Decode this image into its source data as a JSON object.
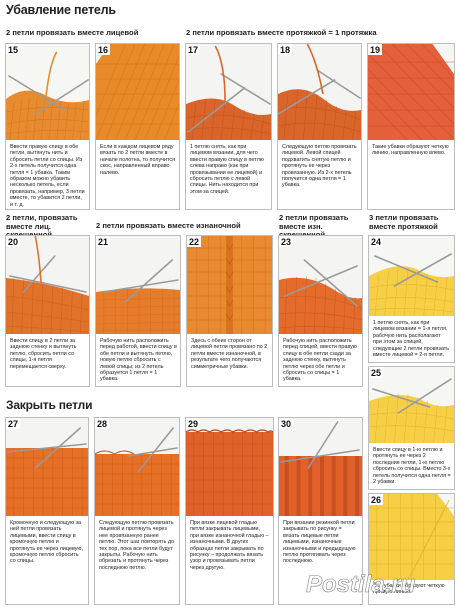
{
  "page": {
    "title": "Убавление петель",
    "close_title": "Закрыть петли",
    "sections": {
      "s1": "2 петли провязать вместе лицевой",
      "s2": "2 петли провязать вместе протяжкой = 1 протяжка",
      "s3": "2 петли, провязать вместе лиц. скрещенной",
      "s4": "2 петли провязать вместе изнаночной",
      "s5": "2 петли провязать вместе изн. скрещенной",
      "s6": "3 петли провязать вместе протяжкой"
    },
    "steps": [
      {
        "num": "15",
        "text": "Ввести правую спицу в обе петли, вытянуть нить и сбросить петли со спицы. Из 2-х петель получится одна петля = 1 убавка. Таким образом можно убавить несколько петель, если провязать, например, 3 петли вместе, то убавится 2 петли, и т. д."
      },
      {
        "num": "16",
        "text": "Если в каждом лицевом ряду вязать по 2 петли вместе в начале полотна, то получится скос, направленный вправо налево."
      },
      {
        "num": "17",
        "text": "1 петлю снять, как при лицевом вязании, для чего ввести правую спицу в петлю слева направо (как при провязывании ее лицевой) и сбросить петлю с левой спицы. Нить находится при этом за спицей."
      },
      {
        "num": "18",
        "text": "Следующую петлю провязать лицевой. Левой спицей подхватить снятую петлю и протянуть ее через провязанную. Из 2-х петель получится одна петля = 1 убавка."
      },
      {
        "num": "19",
        "text": "Такие убавки образуют четкую линию, направленную влево."
      },
      {
        "num": "20",
        "text": "Ввести спицу в 2 петли за заднюю стенку и вытянуть петлю, сбросить петли со спицы, 1-я петля перемещается сверху."
      },
      {
        "num": "21",
        "text": "Рабочую нить расположить перед работой, ввести спицу в обе петли и вытянуть петлю, новую петлю сбросить с левой спицы; из 2 петель образуется 1 петля = 1 убавка."
      },
      {
        "num": "22",
        "text": "Здесь с обеих сторон от лицевой петли провязано по 2 петли вместе изнаночной, в результате чего получаются симметричные убавки."
      },
      {
        "num": "23",
        "text": "Рабочую нить расположить перед спицей, ввести правую спицу в обе петли сзади за заднюю стенку, вытянуть петлю через обе петли и сбросить со спицы = 1 убавка."
      },
      {
        "num": "24",
        "text": "1 петлю снять, как при лицевом вязании = 1-я петля, рабочую нить располагают при этом за спицей, следующие 2 петли провязать вместе лицевой = 2-я петля."
      },
      {
        "num": "25",
        "text": "Ввести спицу в 1-ю петлю и протянуть ее через 2 последние петли, 1-ю петлю сбросить со спицы. Вместо 3-х петель получится одна петля = 2 убавки."
      },
      {
        "num": "26",
        "text": "Эти убавки образуют четкую прямую линию."
      },
      {
        "num": "27",
        "text": "Кромочную и следующую за ней петли провязать лицевыми, ввести спицу в кромочную петлю и протянуть ее через лицевую, кромочную петлю сбросить со спицы."
      },
      {
        "num": "28",
        "text": "Следующую петлю провязать лицевой и протянуть через нее провязанную ранее петлю. Этот шаг повторять до тех пор, пока все петли будут закрыты. Рабочую нить обрезать и протянуть через последнюю петлю."
      },
      {
        "num": "29",
        "text": "При вязке лицевой гладью петли закрывать лицевыми, при вязке изнаночной гладью – изнаночными. В других образцах петли закрывать по рисунку – продолжать вязать узор и провязывать петли через другую."
      },
      {
        "num": "30",
        "text": "При вязании резинкой петли закрывать по рисунку = вязать лицевые петли лицевыми, изнаночные изнаночными и предыдущую петлю протягивать через последнюю."
      }
    ],
    "watermark": "Postila.ru"
  }
}
